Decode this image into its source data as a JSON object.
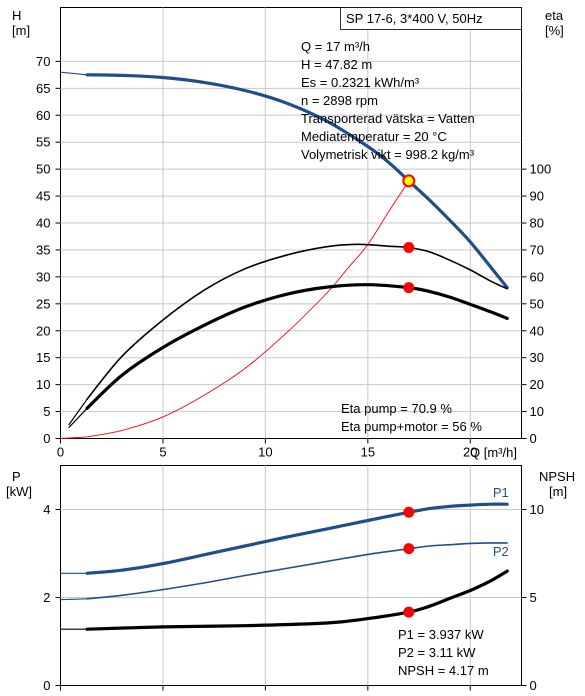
{
  "chart_data": [
    {
      "type": "line",
      "box_title": "SP 17-6, 3*400 V, 50Hz",
      "left_axis": {
        "label_line1": "H",
        "label_line2": "[m]",
        "ylim": [
          0,
          80
        ],
        "ticks": [
          0,
          5,
          10,
          15,
          20,
          25,
          30,
          35,
          40,
          45,
          50,
          55,
          60,
          65,
          70
        ]
      },
      "right_axis": {
        "label_line1": "eta",
        "label_line2": "[%]",
        "ylim": [
          0,
          160
        ],
        "ticks": [
          0,
          10,
          20,
          30,
          40,
          50,
          60,
          70,
          80,
          90,
          100
        ]
      },
      "x_axis": {
        "label": "Q [m³/h]",
        "xlim": [
          0,
          22.5
        ],
        "ticks": [
          0,
          5,
          10,
          15,
          20
        ]
      },
      "info": [
        "Q = 17 m³/h",
        "H = 47.82 m",
        "Es = 0.2321 kWh/m³",
        "n = 2898 rpm",
        "Transporterad vätska = Vatten",
        "Mediatemperatur = 20 °C",
        "Volymetrisk vikt = 998.2 kg/m³"
      ],
      "eta_info": [
        "Eta pump = 70.9 %",
        "Eta pump+motor = 56 %"
      ],
      "series": [
        {
          "axis": "left",
          "color": "#1f4e8c",
          "width": 3.2,
          "points": [
            [
              1.3,
              67.5
            ],
            [
              3,
              67.4
            ],
            [
              5,
              67.0
            ],
            [
              7,
              66.1
            ],
            [
              9,
              64.6
            ],
            [
              11,
              62.3
            ],
            [
              13,
              58.9
            ],
            [
              15,
              54.2
            ],
            [
              16,
              51.3
            ],
            [
              17,
              47.82
            ],
            [
              18,
              44.3
            ],
            [
              19,
              40.5
            ],
            [
              20,
              36.5
            ],
            [
              21,
              31.8
            ],
            [
              21.8,
              28
            ]
          ],
          "dashed_start": [
            [
              0,
              68
            ],
            [
              1.3,
              67.5
            ]
          ]
        },
        {
          "axis": "left",
          "color": "#ff0000",
          "width": 0.9,
          "points": [
            [
              1.3,
              0.3
            ],
            [
              3,
              1.5
            ],
            [
              5,
              4
            ],
            [
              7,
              8
            ],
            [
              9,
              13
            ],
            [
              11,
              19.5
            ],
            [
              13,
              27
            ],
            [
              14,
              31.5
            ],
            [
              15,
              36
            ],
            [
              16,
              42
            ],
            [
              17,
              47.82
            ]
          ],
          "dashed_start": [
            [
              0,
              0
            ],
            [
              1.3,
              0.3
            ]
          ]
        },
        {
          "axis": "right",
          "color": "#000000",
          "width": 1.6,
          "points": [
            [
              1.3,
              14.6
            ],
            [
              3,
              30.5
            ],
            [
              5,
              44
            ],
            [
              7,
              55
            ],
            [
              9,
              63
            ],
            [
              11,
              68
            ],
            [
              13,
              71.2
            ],
            [
              14.5,
              72.1
            ],
            [
              16,
              71.4
            ],
            [
              17,
              70.9
            ],
            [
              18,
              69.3
            ],
            [
              19,
              66.2
            ],
            [
              20,
              62.6
            ],
            [
              21,
              58.4
            ],
            [
              21.8,
              55.6
            ]
          ],
          "dashed_start": [
            [
              0.4,
              5
            ],
            [
              1.3,
              14.6
            ]
          ]
        },
        {
          "axis": "right",
          "color": "#000000",
          "width": 3.2,
          "points": [
            [
              1.3,
              11.2
            ],
            [
              3,
              23.5
            ],
            [
              5,
              33.8
            ],
            [
              7,
              42
            ],
            [
              9,
              48.8
            ],
            [
              11,
              53.5
            ],
            [
              13,
              56.2
            ],
            [
              15,
              57.1
            ],
            [
              17,
              56
            ],
            [
              18,
              54.6
            ],
            [
              19,
              52.5
            ],
            [
              20,
              49.8
            ],
            [
              21,
              47
            ],
            [
              21.8,
              44.6
            ]
          ],
          "dashed_start": [
            [
              0.4,
              4
            ],
            [
              1.3,
              11.2
            ]
          ]
        }
      ],
      "markers": [
        {
          "axis": "left",
          "x": 17,
          "y": 47.82,
          "fill": "#ffff00",
          "stroke": "#ff0000"
        },
        {
          "axis": "right",
          "x": 17,
          "y": 70.9,
          "fill": "#ff0000",
          "stroke": "#ff0000"
        },
        {
          "axis": "right",
          "x": 17,
          "y": 56,
          "fill": "#ff0000",
          "stroke": "#ff0000"
        }
      ]
    },
    {
      "type": "line",
      "left_axis": {
        "label_line1": "P",
        "label_line2": "[kW]",
        "ylim": [
          0,
          5
        ],
        "ticks": [
          0,
          2,
          4
        ]
      },
      "right_axis": {
        "label_line1": "NPSH",
        "label_line2": "[m]",
        "ylim": [
          0,
          12.5
        ],
        "ticks": [
          0,
          5,
          10
        ]
      },
      "x_axis": {
        "xlim": [
          0,
          22.5
        ]
      },
      "series_labels": [
        {
          "name": "P1",
          "x": 21.1,
          "y": 4.28,
          "color": "#1f4e8c"
        },
        {
          "name": "P2",
          "x": 21.1,
          "y": 2.94,
          "color": "#1f4e8c"
        }
      ],
      "info": [
        "P1 = 3.937 kW",
        "P2 = 3.11 kW",
        "NPSH = 4.17 m"
      ],
      "series": [
        {
          "axis": "left",
          "color": "#1f4e8c",
          "width": 3.2,
          "points": [
            [
              1.3,
              2.55
            ],
            [
              3,
              2.62
            ],
            [
              5,
              2.77
            ],
            [
              7,
              2.97
            ],
            [
              9,
              3.17
            ],
            [
              11,
              3.37
            ],
            [
              13,
              3.56
            ],
            [
              15,
              3.75
            ],
            [
              17,
              3.937
            ],
            [
              18,
              4.02
            ],
            [
              19,
              4.07
            ],
            [
              20,
              4.1
            ],
            [
              21,
              4.12
            ],
            [
              21.8,
              4.12
            ]
          ],
          "dashed_start": [
            [
              0,
              2.55
            ],
            [
              1.3,
              2.55
            ]
          ]
        },
        {
          "axis": "left",
          "color": "#1f4e8c",
          "width": 1.6,
          "points": [
            [
              1.3,
              1.97
            ],
            [
              3,
              2.05
            ],
            [
              5,
              2.18
            ],
            [
              7,
              2.33
            ],
            [
              9,
              2.5
            ],
            [
              11,
              2.66
            ],
            [
              13,
              2.82
            ],
            [
              15,
              2.98
            ],
            [
              17,
              3.11
            ],
            [
              18,
              3.17
            ],
            [
              19,
              3.2
            ],
            [
              20,
              3.23
            ],
            [
              21,
              3.24
            ],
            [
              21.8,
              3.24
            ]
          ],
          "dashed_start": [
            [
              0,
              1.95
            ],
            [
              1.3,
              1.97
            ]
          ]
        },
        {
          "axis": "right",
          "color": "#000000",
          "width": 3.2,
          "points": [
            [
              1.3,
              3.2
            ],
            [
              5,
              3.33
            ],
            [
              9,
              3.4
            ],
            [
              13,
              3.55
            ],
            [
              15,
              3.8
            ],
            [
              17,
              4.17
            ],
            [
              18,
              4.5
            ],
            [
              19,
              4.95
            ],
            [
              20,
              5.4
            ],
            [
              21,
              5.95
            ],
            [
              21.8,
              6.5
            ]
          ],
          "dashed_start": [
            [
              0,
              3.2
            ],
            [
              1.3,
              3.2
            ]
          ]
        }
      ],
      "markers": [
        {
          "axis": "left",
          "x": 17,
          "y": 3.937,
          "fill": "#ff0000",
          "stroke": "#ff0000"
        },
        {
          "axis": "left",
          "x": 17,
          "y": 3.11,
          "fill": "#ff0000",
          "stroke": "#ff0000"
        },
        {
          "axis": "right",
          "x": 17,
          "y": 4.17,
          "fill": "#ff0000",
          "stroke": "#ff0000"
        }
      ]
    }
  ]
}
